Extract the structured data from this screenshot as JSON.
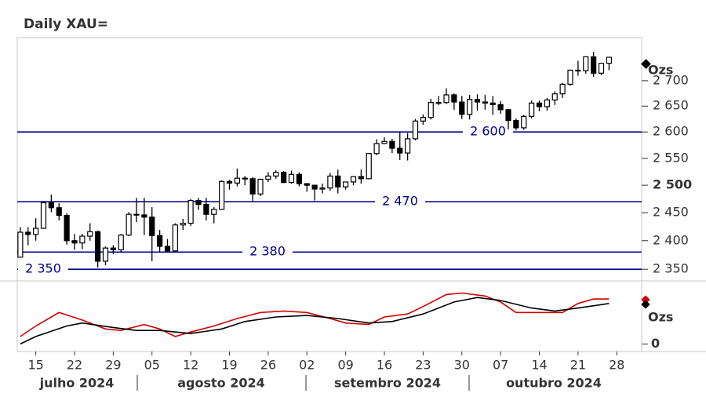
{
  "chart_data": {
    "type": "candlestick",
    "title": "Daily XAU=",
    "unit_label": "Ozs",
    "log_scale": true,
    "xlim": [
      "2024-07-10",
      "2024-10-30"
    ],
    "ylim": [
      2330,
      2787
    ],
    "yticks": [
      {
        "value": 2350,
        "label": "2 350"
      },
      {
        "value": 2400,
        "label": "2 400"
      },
      {
        "value": 2450,
        "label": "2 450"
      },
      {
        "value": 2500,
        "label": "2 500"
      },
      {
        "value": 2550,
        "label": "2 550"
      },
      {
        "value": 2600,
        "label": "2 600"
      },
      {
        "value": 2650,
        "label": "2 650"
      },
      {
        "value": 2700,
        "label": "2 700"
      }
    ],
    "xticks": [
      {
        "value": "2024-07-15",
        "label": "15"
      },
      {
        "value": "2024-07-22",
        "label": "22"
      },
      {
        "value": "2024-07-29",
        "label": "29"
      },
      {
        "value": "2024-08-05",
        "label": "05"
      },
      {
        "value": "2024-08-12",
        "label": "12"
      },
      {
        "value": "2024-08-19",
        "label": "19"
      },
      {
        "value": "2024-08-26",
        "label": "26"
      },
      {
        "value": "2024-09-02",
        "label": "02"
      },
      {
        "value": "2024-09-09",
        "label": "09"
      },
      {
        "value": "2024-09-16",
        "label": "16"
      },
      {
        "value": "2024-09-23",
        "label": "23"
      },
      {
        "value": "2024-09-30",
        "label": "30"
      },
      {
        "value": "2024-10-07",
        "label": "07"
      },
      {
        "value": "2024-10-14",
        "label": "14"
      },
      {
        "value": "2024-10-21",
        "label": "21"
      },
      {
        "value": "2024-10-28",
        "label": "28"
      }
    ],
    "months": [
      "julho 2024",
      "agosto 2024",
      "setembro 2024",
      "outubro 2024"
    ],
    "hlines": [
      {
        "value": 2600,
        "label": "2 600"
      },
      {
        "value": 2470,
        "label": "2 470"
      },
      {
        "value": 2380,
        "label": "2 380"
      },
      {
        "value": 2350,
        "label": "2 350"
      }
    ],
    "hline_color": "#00008b",
    "candles": {
      "x": [
        "2024-07-11",
        "2024-07-12",
        "2024-07-15",
        "2024-07-16",
        "2024-07-17",
        "2024-07-18",
        "2024-07-19",
        "2024-07-22",
        "2024-07-23",
        "2024-07-24",
        "2024-07-25",
        "2024-07-26",
        "2024-07-29",
        "2024-07-30",
        "2024-07-31",
        "2024-08-01",
        "2024-08-02",
        "2024-08-05",
        "2024-08-06",
        "2024-08-07",
        "2024-08-08",
        "2024-08-09",
        "2024-08-12",
        "2024-08-13",
        "2024-08-14",
        "2024-08-15",
        "2024-08-16",
        "2024-08-19",
        "2024-08-20",
        "2024-08-21",
        "2024-08-22",
        "2024-08-23",
        "2024-08-26",
        "2024-08-27",
        "2024-08-28",
        "2024-08-29",
        "2024-08-30",
        "2024-09-02",
        "2024-09-03",
        "2024-09-04",
        "2024-09-05",
        "2024-09-06",
        "2024-09-09",
        "2024-09-10",
        "2024-09-11",
        "2024-09-12",
        "2024-09-13",
        "2024-09-16",
        "2024-09-17",
        "2024-09-18",
        "2024-09-19",
        "2024-09-20",
        "2024-09-23",
        "2024-09-24",
        "2024-09-25",
        "2024-09-26",
        "2024-09-27",
        "2024-09-30",
        "2024-10-01",
        "2024-10-02",
        "2024-10-03",
        "2024-10-04",
        "2024-10-07",
        "2024-10-08",
        "2024-10-09",
        "2024-10-10",
        "2024-10-11",
        "2024-10-14",
        "2024-10-15",
        "2024-10-16",
        "2024-10-17",
        "2024-10-18",
        "2024-10-21",
        "2024-10-22",
        "2024-10-23",
        "2024-10-24",
        "2024-10-25"
      ],
      "open": [
        2371,
        2415,
        2411,
        2422,
        2468,
        2459,
        2445,
        2400,
        2396,
        2408,
        2416,
        2364,
        2387,
        2384,
        2410,
        2447,
        2446,
        2442,
        2409,
        2390,
        2382,
        2428,
        2431,
        2472,
        2465,
        2447,
        2456,
        2507,
        2504,
        2513,
        2512,
        2484,
        2511,
        2517,
        2524,
        2505,
        2520,
        2503,
        2500,
        2493,
        2495,
        2517,
        2497,
        2506,
        2516,
        2512,
        2559,
        2578,
        2582,
        2569,
        2560,
        2587,
        2621,
        2628,
        2657,
        2657,
        2672,
        2658,
        2634,
        2663,
        2658,
        2656,
        2653,
        2643,
        2622,
        2608,
        2630,
        2656,
        2649,
        2662,
        2674,
        2693,
        2721,
        2720,
        2748,
        2715,
        2735
      ],
      "high": [
        2424,
        2424,
        2440,
        2469,
        2483,
        2467,
        2449,
        2412,
        2412,
        2431,
        2418,
        2390,
        2392,
        2412,
        2451,
        2477,
        2477,
        2460,
        2419,
        2403,
        2431,
        2439,
        2475,
        2477,
        2477,
        2460,
        2509,
        2510,
        2531,
        2517,
        2515,
        2512,
        2524,
        2528,
        2526,
        2527,
        2524,
        2503,
        2501,
        2503,
        2523,
        2529,
        2506,
        2517,
        2529,
        2560,
        2586,
        2590,
        2587,
        2600,
        2598,
        2625,
        2634,
        2664,
        2670,
        2685,
        2675,
        2670,
        2672,
        2673,
        2672,
        2670,
        2660,
        2644,
        2626,
        2633,
        2661,
        2661,
        2666,
        2679,
        2696,
        2722,
        2740,
        2749,
        2758,
        2736,
        2745
      ],
      "low": [
        2371,
        2392,
        2400,
        2421,
        2451,
        2436,
        2393,
        2384,
        2385,
        2400,
        2353,
        2357,
        2376,
        2380,
        2408,
        2433,
        2410,
        2364,
        2381,
        2380,
        2380,
        2419,
        2426,
        2455,
        2436,
        2431,
        2455,
        2492,
        2498,
        2500,
        2470,
        2480,
        2506,
        2512,
        2505,
        2503,
        2498,
        2488,
        2472,
        2485,
        2490,
        2485,
        2492,
        2500,
        2503,
        2511,
        2556,
        2577,
        2560,
        2547,
        2546,
        2584,
        2614,
        2624,
        2652,
        2654,
        2643,
        2625,
        2624,
        2641,
        2643,
        2633,
        2635,
        2605,
        2603,
        2604,
        2626,
        2640,
        2641,
        2652,
        2666,
        2690,
        2710,
        2714,
        2708,
        2711,
        2721
      ],
      "close": [
        2415,
        2411,
        2422,
        2468,
        2459,
        2445,
        2400,
        2396,
        2408,
        2416,
        2364,
        2387,
        2384,
        2410,
        2447,
        2446,
        2442,
        2409,
        2390,
        2382,
        2428,
        2431,
        2472,
        2465,
        2447,
        2456,
        2507,
        2504,
        2513,
        2512,
        2484,
        2511,
        2517,
        2524,
        2505,
        2520,
        2503,
        2500,
        2493,
        2495,
        2517,
        2497,
        2506,
        2516,
        2512,
        2559,
        2578,
        2582,
        2569,
        2560,
        2587,
        2621,
        2628,
        2657,
        2657,
        2672,
        2658,
        2634,
        2663,
        2658,
        2656,
        2653,
        2643,
        2622,
        2608,
        2630,
        2656,
        2649,
        2662,
        2674,
        2693,
        2721,
        2720,
        2748,
        2715,
        2735,
        2747
      ]
    },
    "lower": {
      "unit_label": "Ozs",
      "ylim": [
        -5,
        40
      ],
      "yticks": [
        0
      ],
      "series": [
        {
          "color": "#d40000",
          "x": [
            "2024-07-11",
            "2024-07-15",
            "2024-07-18",
            "2024-07-23",
            "2024-07-26",
            "2024-07-30",
            "2024-08-02",
            "2024-08-06",
            "2024-08-08",
            "2024-08-12",
            "2024-08-15",
            "2024-08-20",
            "2024-08-23",
            "2024-08-28",
            "2024-09-02",
            "2024-09-05",
            "2024-09-09",
            "2024-09-12",
            "2024-09-16",
            "2024-09-19",
            "2024-09-23",
            "2024-09-26",
            "2024-09-30",
            "2024-10-03",
            "2024-10-07",
            "2024-10-09",
            "2024-10-14",
            "2024-10-17",
            "2024-10-21",
            "2024-10-23",
            "2024-10-25"
          ],
          "values": [
            5,
            12,
            21,
            16,
            10,
            9,
            13,
            10,
            5,
            8,
            12,
            17,
            21,
            22,
            21,
            17,
            14,
            13,
            18,
            20,
            25,
            33,
            34,
            32,
            28,
            21,
            21,
            21,
            27,
            30,
            30
          ]
        },
        {
          "color": "#000000",
          "x": [
            "2024-07-11",
            "2024-07-15",
            "2024-07-19",
            "2024-07-23",
            "2024-07-29",
            "2024-08-01",
            "2024-08-06",
            "2024-08-12",
            "2024-08-16",
            "2024-08-21",
            "2024-08-27",
            "2024-09-02",
            "2024-09-06",
            "2024-09-12",
            "2024-09-17",
            "2024-09-23",
            "2024-09-27",
            "2024-10-02",
            "2024-10-07",
            "2024-10-11",
            "2024-10-16",
            "2024-10-21",
            "2024-10-25"
          ],
          "values": [
            0,
            5,
            12,
            14,
            11,
            9,
            9,
            7,
            10,
            15,
            18,
            19,
            17,
            14,
            15,
            20,
            28,
            31,
            29,
            24,
            22,
            24,
            27
          ]
        }
      ]
    }
  }
}
